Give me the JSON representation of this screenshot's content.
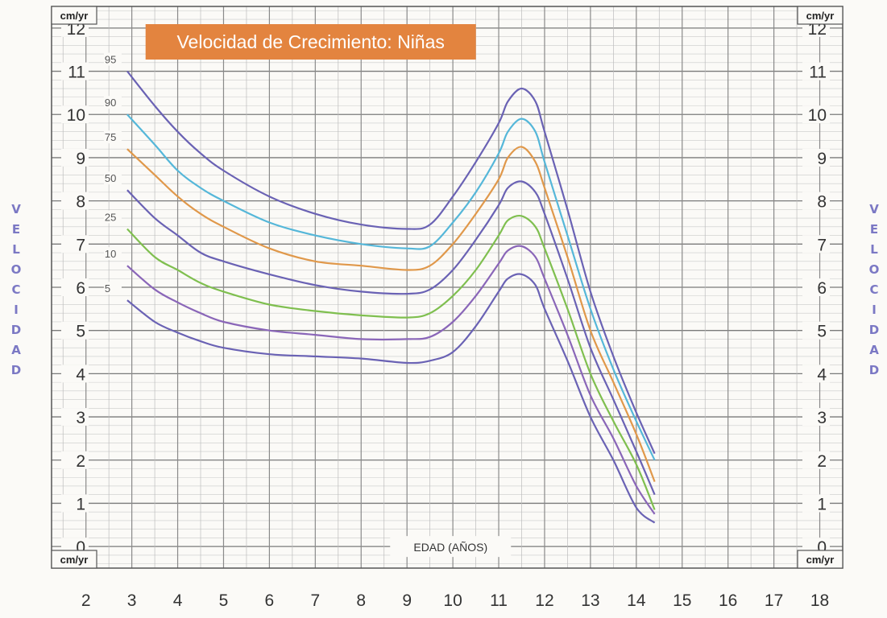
{
  "chart_data": {
    "type": "line",
    "title": "Velocidad de Crecimiento: Niñas",
    "title_bg": "#e3843f",
    "xlabel": "EDAD (AÑOS)",
    "ylabel": "VELOCIDAD",
    "y_unit": "cm/yr",
    "xlim": [
      1.25,
      18.5
    ],
    "ylim": [
      -0.5,
      12.5
    ],
    "x_ticks": [
      2,
      3,
      4,
      5,
      6,
      7,
      8,
      9,
      10,
      11,
      12,
      13,
      14,
      15,
      16,
      17,
      18
    ],
    "y_ticks": [
      0,
      1,
      2,
      3,
      4,
      5,
      6,
      7,
      8,
      9,
      10,
      11,
      12
    ],
    "grid": true,
    "legend": "none",
    "x": [
      2.9,
      3.5,
      4,
      4.5,
      5,
      6,
      7,
      8,
      9,
      9.5,
      10,
      10.5,
      11,
      11.2,
      11.5,
      11.8,
      12,
      12.5,
      13,
      13.5,
      14,
      14.4
    ],
    "series": [
      {
        "name": "95",
        "color": "#6a62b4",
        "values": [
          11.0,
          10.2,
          9.6,
          9.1,
          8.7,
          8.1,
          7.7,
          7.45,
          7.35,
          7.45,
          8.1,
          8.9,
          9.8,
          10.3,
          10.6,
          10.3,
          9.6,
          7.8,
          5.9,
          4.4,
          3.1,
          2.15
        ]
      },
      {
        "name": "90",
        "color": "#55b7d9",
        "values": [
          10.0,
          9.3,
          8.7,
          8.3,
          8.0,
          7.5,
          7.2,
          7.0,
          6.9,
          6.95,
          7.5,
          8.2,
          9.1,
          9.6,
          9.9,
          9.6,
          8.9,
          7.2,
          5.5,
          4.1,
          2.9,
          2.0
        ]
      },
      {
        "name": "75",
        "color": "#e0984a",
        "values": [
          9.2,
          8.6,
          8.1,
          7.7,
          7.4,
          6.9,
          6.6,
          6.5,
          6.4,
          6.5,
          7.0,
          7.7,
          8.5,
          9.0,
          9.25,
          8.9,
          8.3,
          6.7,
          5.0,
          3.8,
          2.6,
          1.5
        ]
      },
      {
        "name": "50",
        "color": "#6a62b4",
        "values": [
          8.25,
          7.6,
          7.2,
          6.8,
          6.6,
          6.3,
          6.05,
          5.9,
          5.85,
          5.95,
          6.4,
          7.1,
          7.9,
          8.3,
          8.45,
          8.2,
          7.7,
          6.2,
          4.6,
          3.4,
          2.2,
          1.2
        ]
      },
      {
        "name": "25",
        "color": "#7fbf4f",
        "values": [
          7.35,
          6.7,
          6.4,
          6.1,
          5.9,
          5.6,
          5.45,
          5.35,
          5.3,
          5.4,
          5.8,
          6.4,
          7.2,
          7.55,
          7.65,
          7.4,
          6.9,
          5.5,
          4.0,
          2.9,
          1.9,
          0.85
        ]
      },
      {
        "name": "10",
        "color": "#8a66b8",
        "values": [
          6.5,
          5.95,
          5.65,
          5.4,
          5.2,
          5.0,
          4.9,
          4.8,
          4.8,
          4.85,
          5.2,
          5.8,
          6.55,
          6.85,
          6.95,
          6.7,
          6.2,
          4.9,
          3.5,
          2.5,
          1.4,
          0.75
        ]
      },
      {
        "name": "5",
        "color": "#6a62b4",
        "values": [
          5.7,
          5.2,
          4.95,
          4.75,
          4.6,
          4.45,
          4.4,
          4.35,
          4.25,
          4.3,
          4.5,
          5.1,
          5.9,
          6.2,
          6.3,
          6.05,
          5.5,
          4.3,
          3.0,
          2.0,
          0.9,
          0.55
        ]
      }
    ]
  }
}
